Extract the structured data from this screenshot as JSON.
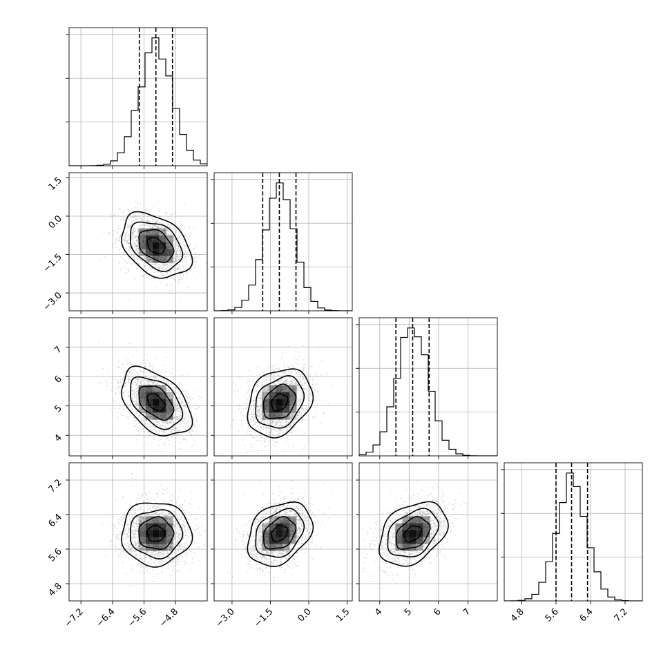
{
  "chart_data": {
    "type": "scatter",
    "subtype": "corner-plot",
    "title": "",
    "grid": true,
    "parameters": [
      {
        "index": 0,
        "range": [
          -7.5,
          -4.0
        ],
        "ticks": [
          -7.2,
          -6.4,
          -5.6,
          -4.8
        ],
        "tick_labels": [
          "−7.2",
          "−6.4",
          "−5.6",
          "−4.8"
        ],
        "mean": -5.3,
        "std": 0.42,
        "quantiles": [
          -5.72,
          -5.3,
          -4.88
        ]
      },
      {
        "index": 1,
        "range": [
          -3.7,
          1.7
        ],
        "ticks": [
          -3.0,
          -1.5,
          0.0,
          1.5
        ],
        "tick_labels": [
          "−3.0",
          "−1.5",
          "0.0",
          "1.5"
        ],
        "mean": -1.15,
        "std": 0.6,
        "quantiles": [
          -1.8,
          -1.15,
          -0.5
        ]
      },
      {
        "index": 2,
        "range": [
          3.3,
          8.0
        ],
        "ticks": [
          4,
          5,
          6,
          7
        ],
        "tick_labels": [
          "4",
          "5",
          "6",
          "7"
        ],
        "mean": 5.12,
        "std": 0.55,
        "quantiles": [
          4.55,
          5.12,
          5.68
        ]
      },
      {
        "index": 3,
        "range": [
          4.4,
          7.6
        ],
        "ticks": [
          4.8,
          5.6,
          6.4,
          7.2
        ],
        "tick_labels": [
          "4.8",
          "5.6",
          "6.4",
          "7.2"
        ],
        "mean": 5.96,
        "std": 0.35,
        "quantiles": [
          5.6,
          5.96,
          6.33
        ]
      }
    ],
    "correlations": [
      {
        "pair": [
          0,
          1
        ],
        "rho": -0.35
      },
      {
        "pair": [
          0,
          2
        ],
        "rho": -0.45
      },
      {
        "pair": [
          1,
          2
        ],
        "rho": 0.25
      },
      {
        "pair": [
          0,
          3
        ],
        "rho": 0.0
      },
      {
        "pair": [
          1,
          3
        ],
        "rho": 0.3
      },
      {
        "pair": [
          2,
          3
        ],
        "rho": 0.35
      }
    ],
    "samples_per_panel": 1800,
    "histogram_bins": 20,
    "contour_levels_sigma": [
      0.5,
      1.0,
      1.5,
      2.0
    ],
    "colors": {
      "points": "#8a8a8a",
      "lines": "#000000",
      "grid": "#b0b0b0"
    }
  }
}
